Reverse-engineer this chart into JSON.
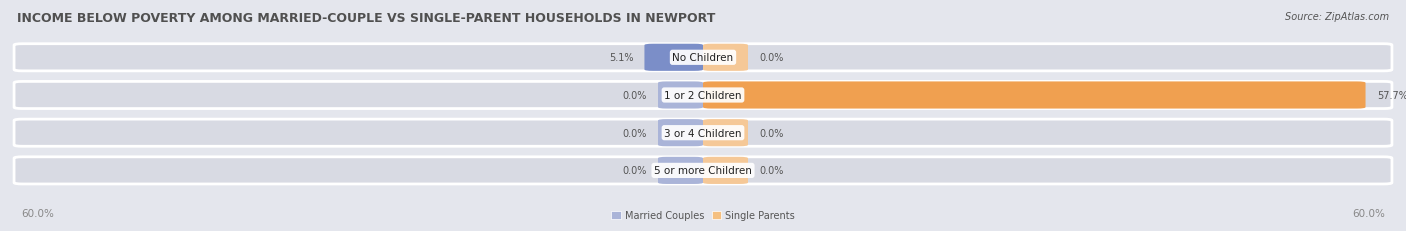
{
  "title": "INCOME BELOW POVERTY AMONG MARRIED-COUPLE VS SINGLE-PARENT HOUSEHOLDS IN NEWPORT",
  "source": "Source: ZipAtlas.com",
  "categories": [
    "No Children",
    "1 or 2 Children",
    "3 or 4 Children",
    "5 or more Children"
  ],
  "married_values": [
    5.1,
    0.0,
    0.0,
    0.0
  ],
  "single_values": [
    0.0,
    57.7,
    0.0,
    0.0
  ],
  "max_val": 60.0,
  "married_color": "#7b8ec8",
  "single_color": "#f0a050",
  "married_color_stub": "#aab4d8",
  "single_color_stub": "#f5c897",
  "bg_color": "#e4e6ed",
  "bar_bg_color": "#d8dae3",
  "bar_bg_edge": "#ffffff",
  "title_color": "#505050",
  "label_color": "#555555",
  "axis_label_color": "#888888",
  "legend_married": "Married Couples",
  "legend_single": "Single Parents",
  "title_fontsize": 9.0,
  "label_fontsize": 7.0,
  "cat_fontsize": 7.5,
  "axis_fontsize": 7.5,
  "source_fontsize": 7.0
}
